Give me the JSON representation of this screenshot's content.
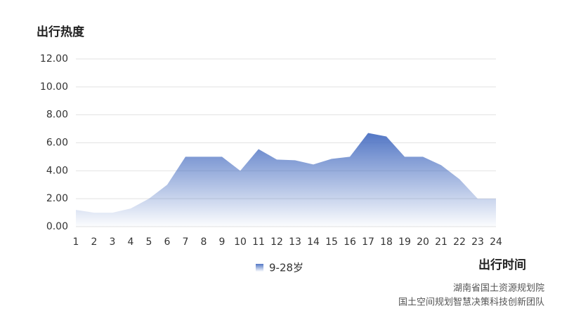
{
  "chart_data": {
    "type": "area",
    "y_label": "出行热度",
    "x_label": "出行时间",
    "x": [
      1,
      2,
      3,
      4,
      5,
      6,
      7,
      8,
      9,
      10,
      11,
      12,
      13,
      14,
      15,
      16,
      17,
      18,
      19,
      20,
      21,
      22,
      23,
      24
    ],
    "series": [
      {
        "name": "9-28岁",
        "color": "#4a70c2",
        "values": [
          1.2,
          1.0,
          1.0,
          1.3,
          2.0,
          3.0,
          5.0,
          5.0,
          5.0,
          4.0,
          5.55,
          4.8,
          4.75,
          4.45,
          4.85,
          5.0,
          6.7,
          6.45,
          5.0,
          5.0,
          4.4,
          3.4,
          2.0,
          2.0
        ]
      }
    ],
    "xlim": [
      1,
      24
    ],
    "xticks": [
      1,
      2,
      3,
      4,
      5,
      6,
      7,
      8,
      9,
      10,
      11,
      12,
      13,
      14,
      15,
      16,
      17,
      18,
      19,
      20,
      21,
      22,
      23,
      24
    ],
    "ylim": [
      0,
      12
    ],
    "yticks": [
      {
        "value": 0,
        "label": "0.00"
      },
      {
        "value": 2,
        "label": "2.00"
      },
      {
        "value": 4,
        "label": "4.00"
      },
      {
        "value": 6,
        "label": "6.00"
      },
      {
        "value": 8,
        "label": "8.00"
      },
      {
        "value": 10,
        "label": "10.00"
      },
      {
        "value": 12,
        "label": "12.00"
      }
    ],
    "grid": true,
    "credits": [
      "湖南省国土资源规划院",
      "国土空间规划智慧决策科技创新团队"
    ]
  }
}
